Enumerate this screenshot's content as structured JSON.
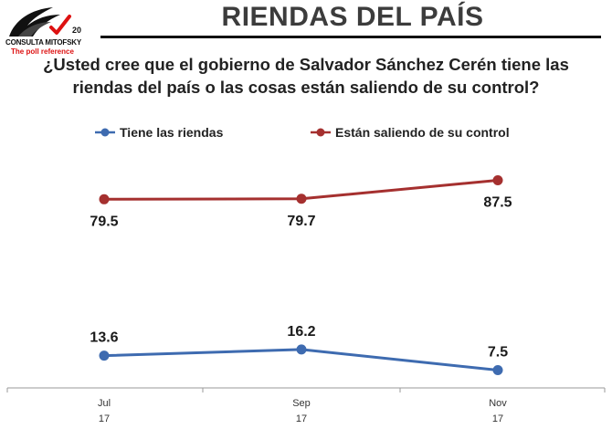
{
  "header": {
    "title": "RIENDAS DEL PAÍS",
    "logo_brand": "CONSULTA MITOFSKY",
    "logo_tagline": "The poll reference",
    "logo_anniversary": "20"
  },
  "question": "¿Usted cree que el gobierno de Salvador Sánchez Cerén tiene las riendas del país o las cosas están saliendo de su control?",
  "colors": {
    "series_1": "#3e6bb0",
    "series_2": "#a5302f"
  },
  "chart_data": {
    "type": "line",
    "categories": [
      "Jul 17",
      "Sep 17",
      "Nov 17"
    ],
    "x_tick_lines": [
      [
        "Jul",
        "17"
      ],
      [
        "Sep",
        "17"
      ],
      [
        "Nov",
        "17"
      ]
    ],
    "series": [
      {
        "name": "Tiene las riendas",
        "values": [
          13.6,
          16.2,
          7.5
        ],
        "labels": [
          "13.6",
          "16.2",
          "7.5"
        ]
      },
      {
        "name": "Están saliendo de su control",
        "values": [
          79.5,
          79.7,
          87.5
        ],
        "labels": [
          "79.5",
          "79.7",
          "87.5"
        ]
      }
    ],
    "legend_position": "top",
    "grid": false,
    "data_labels": true
  }
}
